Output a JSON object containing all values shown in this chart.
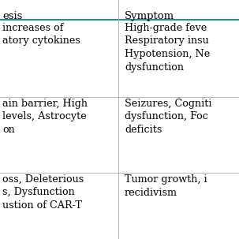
{
  "col1_header": "esis",
  "col2_header": "Symptom",
  "header_line_color": "#2e8b8b",
  "row_data": [
    [
      " increases of\natory cytokines",
      "High-grade feve\nRespiratory insu\nHypotension, Ne\ndysfunction"
    ],
    [
      "ain barrier, High\nlevels, Astrocyte\non",
      "Seizures, Cogniti\ndysfunction, Foc\ndeficits"
    ],
    [
      "oss, Deleterious\ns, Dysfunction\nustion of CAR-T",
      "Tumor growth, i\nrecidivism"
    ]
  ],
  "row_line_color": "#aaaaaa",
  "bg_color": "#ffffff",
  "text_color": "#000000",
  "font_size": 9.2,
  "header_font_size": 9.5,
  "fig_width": 3.03,
  "fig_height": 3.03
}
